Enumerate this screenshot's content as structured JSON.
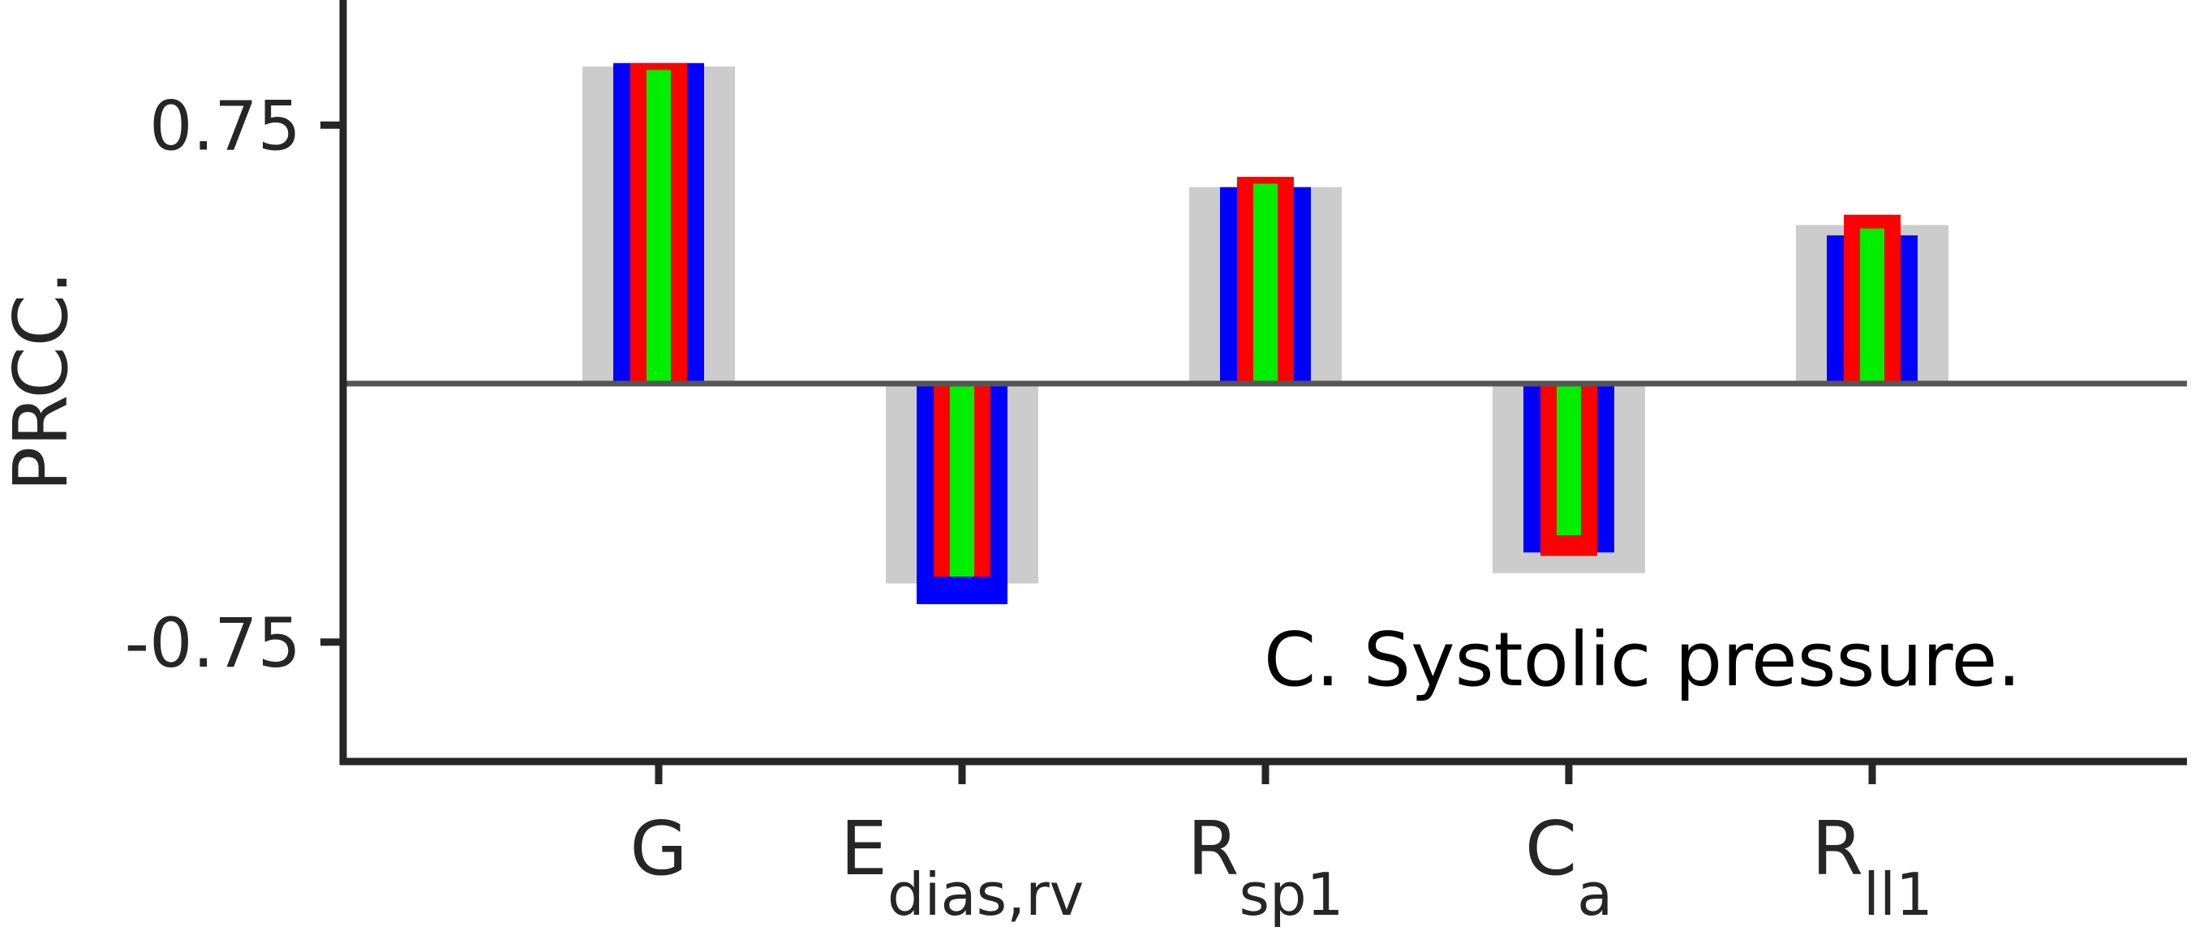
{
  "chart_data": {
    "type": "bar",
    "annotation": "C. Systolic pressure.",
    "ylabel": "PRCC.",
    "xlabel": "",
    "ylim": [
      -1.3,
      1.1
    ],
    "yticks": [
      0.75,
      -0.75
    ],
    "ytick_labels": [
      "0.75",
      "-0.75"
    ],
    "zero_line": true,
    "categories": [
      {
        "base": "G",
        "sub": ""
      },
      {
        "base": "E",
        "sub": "dias,rv"
      },
      {
        "base": "R",
        "sub": "sp1"
      },
      {
        "base": "C",
        "sub": "a"
      },
      {
        "base": "R",
        "sub": "ll1"
      }
    ],
    "series": [
      {
        "color": "#cccccc",
        "values": [
          0.92,
          -0.58,
          0.57,
          -0.55,
          0.46
        ]
      },
      {
        "color": "#0000ff",
        "values": [
          0.93,
          -0.64,
          0.57,
          -0.49,
          0.43
        ]
      },
      {
        "color": "#ff0000",
        "values": [
          0.93,
          -0.56,
          0.6,
          -0.5,
          0.49
        ]
      },
      {
        "color": "#00ee00",
        "values": [
          0.91,
          -0.56,
          0.58,
          -0.44,
          0.45
        ]
      }
    ],
    "colors": {
      "axis": "#262626",
      "zero_line": "#555555"
    }
  }
}
